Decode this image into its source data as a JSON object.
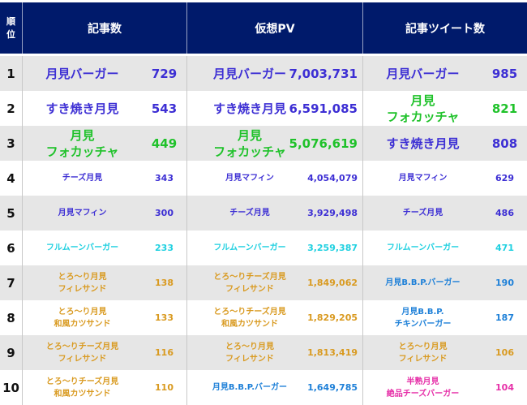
{
  "header": {
    "rank": "順\n位",
    "col1": "記事数",
    "col2": "仮想PV",
    "col3": "記事ツイート数"
  },
  "colors": {
    "purple": "#3d2fd4",
    "green": "#1fc22a",
    "cyan": "#1fd0e0",
    "orange": "#d99a20",
    "blue": "#1e80d8",
    "pink": "#e630a8"
  },
  "rows": [
    {
      "rank": "1",
      "a": {
        "name": "月見バーガー",
        "value": "729",
        "color": "purple"
      },
      "b": {
        "name": "月見バーガー",
        "value": "7,003,731",
        "color": "purple"
      },
      "c": {
        "name": "月見バーガー",
        "value": "985",
        "color": "purple"
      }
    },
    {
      "rank": "2",
      "a": {
        "name": "すき焼き月見",
        "value": "543",
        "color": "purple"
      },
      "b": {
        "name": "すき焼き月見",
        "value": "6,591,085",
        "color": "purple"
      },
      "c": {
        "name": "月見\nフォカッチャ",
        "value": "821",
        "color": "green"
      }
    },
    {
      "rank": "3",
      "a": {
        "name": "月見\nフォカッチャ",
        "value": "449",
        "color": "green"
      },
      "b": {
        "name": "月見\nフォカッチャ",
        "value": "5,076,619",
        "color": "green"
      },
      "c": {
        "name": "すき焼き月見",
        "value": "808",
        "color": "purple"
      }
    },
    {
      "rank": "4",
      "a": {
        "name": "チーズ月見",
        "value": "343",
        "color": "purple"
      },
      "b": {
        "name": "月見マフィン",
        "value": "4,054,079",
        "color": "purple"
      },
      "c": {
        "name": "月見マフィン",
        "value": "629",
        "color": "purple"
      }
    },
    {
      "rank": "5",
      "a": {
        "name": "月見マフィン",
        "value": "300",
        "color": "purple"
      },
      "b": {
        "name": "チーズ月見",
        "value": "3,929,498",
        "color": "purple"
      },
      "c": {
        "name": "チーズ月見",
        "value": "486",
        "color": "purple"
      }
    },
    {
      "rank": "6",
      "a": {
        "name": "フルムーンバーガー",
        "value": "233",
        "color": "cyan"
      },
      "b": {
        "name": "フルムーンバーガー",
        "value": "3,259,387",
        "color": "cyan"
      },
      "c": {
        "name": "フルムーンバーガー",
        "value": "471",
        "color": "cyan"
      }
    },
    {
      "rank": "7",
      "a": {
        "name": "とろ～り月見\nフィレサンド",
        "value": "138",
        "color": "orange"
      },
      "b": {
        "name": "とろ～りチーズ月見\nフィレサンド",
        "value": "1,849,062",
        "color": "orange"
      },
      "c": {
        "name": "月見B.B.P.バーガー",
        "value": "190",
        "color": "blue"
      }
    },
    {
      "rank": "8",
      "a": {
        "name": "とろ～り月見\n和風カツサンド",
        "value": "133",
        "color": "orange"
      },
      "b": {
        "name": "とろ～りチーズ月見\n和風カツサンド",
        "value": "1,829,205",
        "color": "orange"
      },
      "c": {
        "name": "月見B.B.P.\nチキンバーガー",
        "value": "187",
        "color": "blue"
      }
    },
    {
      "rank": "9",
      "a": {
        "name": "とろ～りチーズ月見\nフィレサンド",
        "value": "116",
        "color": "orange"
      },
      "b": {
        "name": "とろ～り月見\nフィレサンド",
        "value": "1,813,419",
        "color": "orange"
      },
      "c": {
        "name": "とろ～り月見\nフィレサンド",
        "value": "106",
        "color": "orange"
      }
    },
    {
      "rank": "10",
      "a": {
        "name": "とろ～りチーズ月見\n和風カツサンド",
        "value": "110",
        "color": "orange"
      },
      "b": {
        "name": "月見B.B.P.バーガー",
        "value": "1,649,785",
        "color": "blue"
      },
      "c": {
        "name": "半熟月見\n絶品チーズバーガー",
        "value": "104",
        "color": "pink"
      }
    }
  ]
}
